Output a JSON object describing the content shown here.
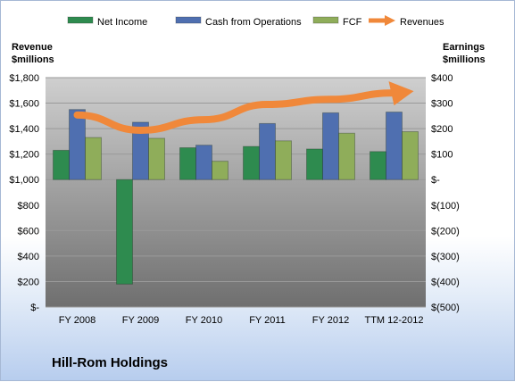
{
  "company_name": "Hill-Rom Holdings",
  "colors": {
    "net_income": "#2e8b4f",
    "cash_from_operations": "#4f6fb0",
    "fcf": "#8fad5a",
    "revenues": "#f0883a"
  },
  "chart_data": {
    "type": "bar",
    "categories": [
      "FY 2008",
      "FY 2009",
      "FY 2010",
      "FY 2011",
      "FY 2012",
      "TTM 12-2012"
    ],
    "left_axis": {
      "label_line1": "Revenue",
      "label_line2": "$millions",
      "range": [
        0,
        1800
      ],
      "ticks": [
        "$-",
        "$200",
        "$400",
        "$600",
        "$800",
        "$1,000",
        "$1,200",
        "$1,400",
        "$1,600",
        "$1,800"
      ]
    },
    "right_axis": {
      "label_line1": "Earnings",
      "label_line2": "$millions",
      "range": [
        -500,
        400
      ],
      "ticks": [
        "$(500)",
        "$(400)",
        "$(300)",
        "$(200)",
        "$(100)",
        "$-",
        "$100",
        "$200",
        "$300",
        "$400"
      ]
    },
    "series": [
      {
        "name": "Net Income",
        "axis": "right",
        "type": "bar",
        "values": [
          115,
          -410,
          125,
          130,
          120,
          110
        ]
      },
      {
        "name": "Cash from Operations",
        "axis": "right",
        "type": "bar",
        "values": [
          275,
          225,
          135,
          220,
          262,
          265
        ]
      },
      {
        "name": "FCF",
        "axis": "right",
        "type": "bar",
        "values": [
          165,
          162,
          72,
          152,
          182,
          188
        ]
      },
      {
        "name": "Revenues",
        "axis": "left",
        "type": "line",
        "values": [
          1507,
          1387,
          1470,
          1590,
          1630,
          1680
        ]
      }
    ],
    "legend_position": "top",
    "grid": true
  }
}
